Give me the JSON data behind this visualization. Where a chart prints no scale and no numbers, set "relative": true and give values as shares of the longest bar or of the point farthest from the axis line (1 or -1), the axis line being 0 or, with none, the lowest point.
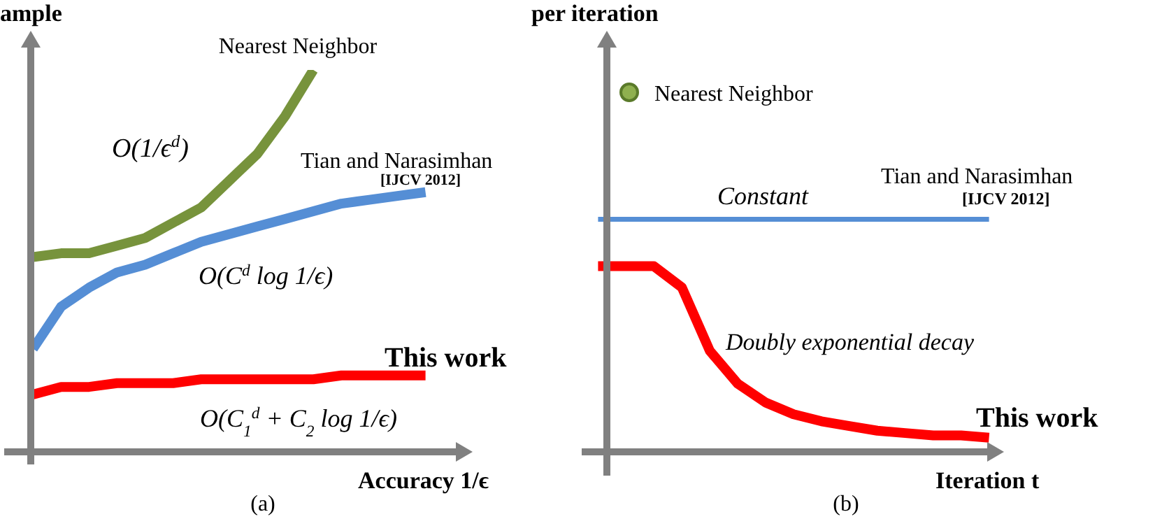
{
  "chart_data": [
    {
      "type": "line",
      "relative": true,
      "marker": "none",
      "xlabel": "Accuracy 1/ϵ",
      "ylabel": "ample",
      "categories": [
        null,
        null,
        null,
        null,
        null,
        null,
        null,
        null,
        null,
        null,
        null,
        null,
        null,
        null,
        null
      ],
      "series": [
        {
          "name": "Nearest Neighbor",
          "color": "#77933c",
          "values": [
            0.51,
            0.52,
            0.52,
            0.54,
            0.56,
            0.6,
            0.64,
            0.71,
            0.78,
            0.88,
            1,
            null,
            null,
            null,
            null
          ]
        },
        {
          "name": "Tian and Narasimhan",
          "color": "#558ed5",
          "values": [
            0.27,
            0.38,
            0.43,
            0.47,
            0.49,
            0.52,
            0.55,
            0.57,
            0.59,
            0.61,
            0.63,
            0.65,
            0.66,
            0.67,
            0.68
          ]
        },
        {
          "name": "This work",
          "color": "#ff0000",
          "values": [
            0.15,
            0.17,
            0.17,
            0.18,
            0.18,
            0.18,
            0.19,
            0.19,
            0.19,
            0.19,
            0.19,
            0.2,
            0.2,
            0.2,
            0.2
          ]
        }
      ],
      "annotations": [
        "[IJCV 2012]",
        "O(1/ϵ$^{d}$)",
        "O(C$^{d}$ log 1/ϵ)",
        "O(C$_{1}$$^{d}$ + C$_{2}$ log 1/ϵ)",
        "(a)"
      ]
    },
    {
      "type": "line",
      "relative": true,
      "marker": "none",
      "xlabel": "Iteration t",
      "ylabel": "per iteration",
      "categories": [
        null,
        null,
        null,
        null,
        null,
        null,
        null,
        null,
        null,
        null,
        null,
        null,
        null,
        null,
        null
      ],
      "series": [
        {
          "name": "Tian and Narasimhan",
          "color": "#558ed5",
          "values": [
            1,
            1,
            1,
            1,
            1,
            1,
            1,
            1,
            1,
            1,
            1,
            1,
            1,
            1,
            1
          ]
        },
        {
          "name": "This work",
          "color": "#ff0000",
          "values": [
            0.79,
            0.79,
            0.79,
            0.7,
            0.43,
            0.29,
            0.21,
            0.16,
            0.13,
            0.11,
            0.09,
            0.08,
            0.07,
            0.07,
            0.06
          ]
        }
      ],
      "annotations": [
        "Nearest Neighbor",
        "[IJCV 2012]",
        "Constant",
        "Doubly exponential decay",
        "(b)"
      ]
    }
  ]
}
